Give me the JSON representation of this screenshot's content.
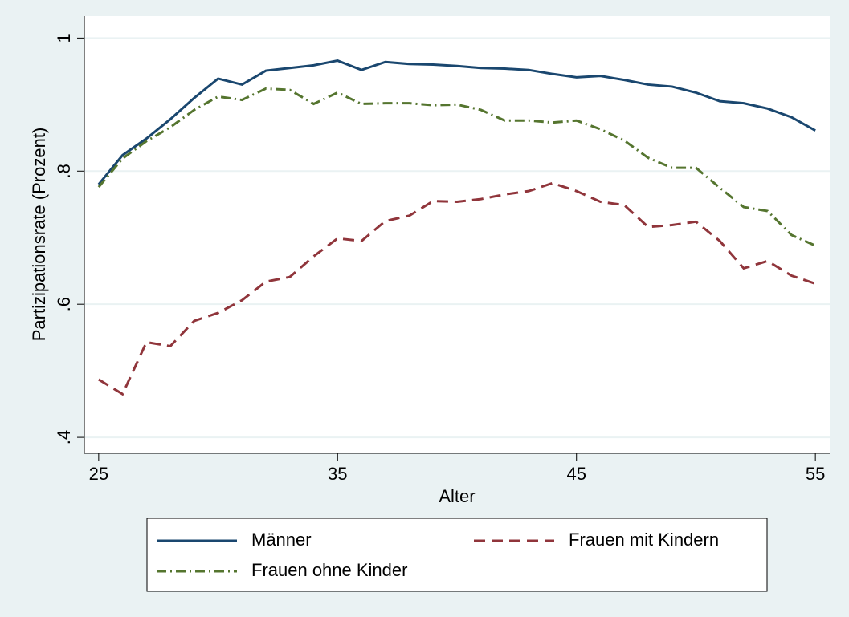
{
  "chart_data": {
    "type": "line",
    "x_label": "Alter",
    "y_label": "Partizipationsrate (Prozent)",
    "x": [
      25,
      26,
      27,
      28,
      29,
      30,
      31,
      32,
      33,
      34,
      35,
      36,
      37,
      38,
      39,
      40,
      41,
      42,
      43,
      44,
      45,
      46,
      47,
      48,
      49,
      50,
      51,
      52,
      53,
      54,
      55
    ],
    "series": [
      {
        "name": "Männer",
        "color": "#1a476f",
        "dash": "solid",
        "values": [
          0.78,
          0.824,
          0.849,
          0.878,
          0.91,
          0.939,
          0.93,
          0.951,
          0.955,
          0.959,
          0.966,
          0.952,
          0.964,
          0.961,
          0.96,
          0.958,
          0.955,
          0.954,
          0.952,
          0.946,
          0.941,
          0.943,
          0.937,
          0.93,
          0.927,
          0.918,
          0.905,
          0.902,
          0.894,
          0.881,
          0.861
        ]
      },
      {
        "name": "Frauen mit Kindern",
        "color": "#90353b",
        "dash": "dashed",
        "values": [
          0.487,
          0.465,
          0.543,
          0.537,
          0.575,
          0.587,
          0.606,
          0.634,
          0.641,
          0.672,
          0.699,
          0.695,
          0.725,
          0.733,
          0.755,
          0.754,
          0.758,
          0.765,
          0.77,
          0.782,
          0.77,
          0.754,
          0.749,
          0.716,
          0.719,
          0.724,
          0.695,
          0.654,
          0.665,
          0.643,
          0.631
        ]
      },
      {
        "name": "Frauen ohne Kinder",
        "color": "#55752f",
        "dash": "dashdot",
        "values": [
          0.776,
          0.819,
          0.845,
          0.866,
          0.892,
          0.912,
          0.907,
          0.924,
          0.922,
          0.901,
          0.918,
          0.901,
          0.902,
          0.902,
          0.899,
          0.9,
          0.892,
          0.876,
          0.876,
          0.873,
          0.876,
          0.863,
          0.846,
          0.82,
          0.805,
          0.805,
          0.775,
          0.746,
          0.74,
          0.704,
          0.688
        ]
      }
    ],
    "xlim": [
      24.4,
      55.6
    ],
    "ylim": [
      0.376,
      1.033
    ],
    "xticks": [
      25,
      35,
      45,
      55
    ],
    "yticks": [
      {
        "value": 0.4,
        "label": ".4"
      },
      {
        "value": 0.6,
        "label": ".6"
      },
      {
        "value": 0.8,
        "label": ".8"
      },
      1
    ],
    "grid": true,
    "legend": "bottom"
  }
}
